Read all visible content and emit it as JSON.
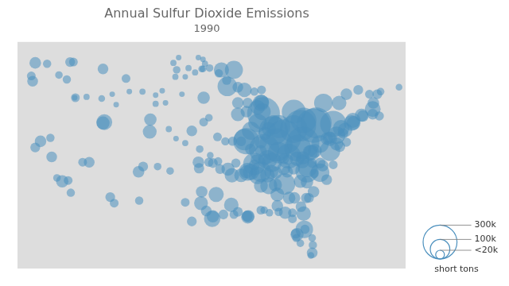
{
  "chart_data": {
    "type": "bubble",
    "title": "Annual Sulfur Dioxide Emissions",
    "subtitle": "1990",
    "color": "#4a8fbd",
    "xlim": [
      -125,
      -66
    ],
    "ylim": [
      24,
      50
    ],
    "grid": false,
    "tick_labels": false,
    "legend": "lower right",
    "size_legend": {
      "values": [
        300000,
        100000,
        20000
      ],
      "labels": [
        "300k",
        "100k",
        "<20k"
      ],
      "title": "short tons"
    },
    "points": [
      {
        "x": -87.6,
        "y": 41.8,
        "size": 280000
      },
      {
        "x": -84.5,
        "y": 39.1,
        "size": 320000
      },
      {
        "x": -82.0,
        "y": 40.4,
        "size": 260000
      },
      {
        "x": -80.0,
        "y": 40.4,
        "size": 310000
      },
      {
        "x": -77.0,
        "y": 40.6,
        "size": 180000
      },
      {
        "x": -86.1,
        "y": 39.8,
        "size": 220000
      },
      {
        "x": -83.0,
        "y": 42.0,
        "size": 150000
      },
      {
        "x": -85.7,
        "y": 38.2,
        "size": 290000
      },
      {
        "x": -87.5,
        "y": 37.7,
        "size": 240000
      },
      {
        "x": -90.2,
        "y": 38.6,
        "size": 180000
      },
      {
        "x": -89.0,
        "y": 36.0,
        "size": 130000
      },
      {
        "x": -88.0,
        "y": 35.1,
        "size": 110000
      },
      {
        "x": -84.4,
        "y": 33.7,
        "size": 120000
      },
      {
        "x": -81.0,
        "y": 35.2,
        "size": 140000
      },
      {
        "x": -80.9,
        "y": 35.6,
        "size": 100000
      },
      {
        "x": -79.0,
        "y": 35.0,
        "size": 90000
      },
      {
        "x": -77.5,
        "y": 37.5,
        "size": 110000
      },
      {
        "x": -76.5,
        "y": 39.3,
        "size": 80000
      },
      {
        "x": -75.8,
        "y": 40.1,
        "size": 70000
      },
      {
        "x": -74.0,
        "y": 41.0,
        "size": 60000
      },
      {
        "x": -73.9,
        "y": 40.7,
        "size": 50000
      },
      {
        "x": -71.0,
        "y": 42.3,
        "size": 65000
      },
      {
        "x": -72.7,
        "y": 41.6,
        "size": 45000
      },
      {
        "x": -70.9,
        "y": 43.0,
        "size": 35000
      },
      {
        "x": -70.3,
        "y": 44.0,
        "size": 25000
      },
      {
        "x": -93.1,
        "y": 44.9,
        "size": 100000
      },
      {
        "x": -94.0,
        "y": 46.8,
        "size": 60000
      },
      {
        "x": -92.1,
        "y": 46.8,
        "size": 85000
      },
      {
        "x": -90.5,
        "y": 44.5,
        "size": 55000
      },
      {
        "x": -88.0,
        "y": 43.0,
        "size": 70000
      },
      {
        "x": -87.9,
        "y": 43.1,
        "size": 55000
      },
      {
        "x": -96.7,
        "y": 43.6,
        "size": 40000
      },
      {
        "x": -98.5,
        "y": 39.8,
        "size": 30000
      },
      {
        "x": -97.5,
        "y": 36.2,
        "size": 35000
      },
      {
        "x": -95.4,
        "y": 29.7,
        "size": 70000
      },
      {
        "x": -97.1,
        "y": 31.5,
        "size": 50000
      },
      {
        "x": -94.8,
        "y": 32.5,
        "size": 60000
      },
      {
        "x": -92.5,
        "y": 31.3,
        "size": 55000
      },
      {
        "x": -90.0,
        "y": 29.9,
        "size": 45000
      },
      {
        "x": -89.9,
        "y": 30.0,
        "size": 40000
      },
      {
        "x": -86.8,
        "y": 33.5,
        "size": 75000
      },
      {
        "x": -85.5,
        "y": 32.5,
        "size": 50000
      },
      {
        "x": -81.4,
        "y": 28.5,
        "size": 80000
      },
      {
        "x": -80.2,
        "y": 25.8,
        "size": 30000
      },
      {
        "x": -81.5,
        "y": 30.3,
        "size": 55000
      },
      {
        "x": -82.5,
        "y": 27.9,
        "size": 45000
      },
      {
        "x": -84.3,
        "y": 30.4,
        "size": 40000
      },
      {
        "x": -78.6,
        "y": 35.8,
        "size": 35000
      },
      {
        "x": -78.0,
        "y": 34.2,
        "size": 30000
      },
      {
        "x": -80.0,
        "y": 32.8,
        "size": 35000
      },
      {
        "x": -81.0,
        "y": 33.9,
        "size": 40000
      },
      {
        "x": -82.0,
        "y": 34.0,
        "size": 45000
      },
      {
        "x": -104.9,
        "y": 39.7,
        "size": 50000
      },
      {
        "x": -104.8,
        "y": 41.1,
        "size": 40000
      },
      {
        "x": -106.6,
        "y": 35.1,
        "size": 35000
      },
      {
        "x": -105.9,
        "y": 35.7,
        "size": 25000
      },
      {
        "x": -111.8,
        "y": 40.8,
        "size": 65000
      },
      {
        "x": -112.0,
        "y": 40.7,
        "size": 45000
      },
      {
        "x": -114.1,
        "y": 36.2,
        "size": 30000
      },
      {
        "x": -115.1,
        "y": 36.2,
        "size": 20000
      },
      {
        "x": -118.2,
        "y": 34.0,
        "size": 40000
      },
      {
        "x": -119.8,
        "y": 36.8,
        "size": 30000
      },
      {
        "x": -121.5,
        "y": 38.6,
        "size": 35000
      },
      {
        "x": -122.3,
        "y": 37.9,
        "size": 25000
      },
      {
        "x": -122.7,
        "y": 45.5,
        "size": 30000
      },
      {
        "x": -122.3,
        "y": 47.6,
        "size": 35000
      },
      {
        "x": -117.0,
        "y": 47.7,
        "size": 25000
      },
      {
        "x": -116.2,
        "y": 43.6,
        "size": 20000
      },
      {
        "x": -112.0,
        "y": 46.9,
        "size": 30000
      },
      {
        "x": -108.5,
        "y": 45.8,
        "size": 20000
      },
      {
        "x": -100.8,
        "y": 46.8,
        "size": 15000
      },
      {
        "x": -96.7,
        "y": 40.8,
        "size": 20000
      },
      {
        "x": -95.9,
        "y": 41.3,
        "size": 15000
      },
      {
        "x": -91.5,
        "y": 41.7,
        "size": 50000
      },
      {
        "x": -90.2,
        "y": 42.0,
        "size": 35000
      },
      {
        "x": -83.0,
        "y": 40.0,
        "size": 200000
      },
      {
        "x": -81.5,
        "y": 41.0,
        "size": 170000
      },
      {
        "x": -78.5,
        "y": 43.0,
        "size": 90000
      },
      {
        "x": -76.1,
        "y": 43.0,
        "size": 55000
      },
      {
        "x": -75.0,
        "y": 44.0,
        "size": 35000
      },
      {
        "x": -73.2,
        "y": 44.5,
        "size": 25000
      },
      {
        "x": -71.5,
        "y": 44.0,
        "size": 20000
      },
      {
        "x": -69.8,
        "y": 44.3,
        "size": 15000
      },
      {
        "x": -67.0,
        "y": 44.8,
        "size": 12000
      },
      {
        "x": -79.6,
        "y": 40.7,
        "size": 250000
      },
      {
        "x": -81.6,
        "y": 38.4,
        "size": 280000
      },
      {
        "x": -82.4,
        "y": 37.8,
        "size": 190000
      },
      {
        "x": -83.8,
        "y": 36.9,
        "size": 160000
      },
      {
        "x": -85.3,
        "y": 40.3,
        "size": 140000
      },
      {
        "x": -85.3,
        "y": 37.3,
        "size": 120000
      },
      {
        "x": -86.3,
        "y": 36.2,
        "size": 100000
      },
      {
        "x": -87.0,
        "y": 36.5,
        "size": 95000
      },
      {
        "x": -88.5,
        "y": 34.7,
        "size": 80000
      },
      {
        "x": -89.5,
        "y": 35.1,
        "size": 70000
      },
      {
        "x": -90.0,
        "y": 35.1,
        "size": 85000
      },
      {
        "x": -91.0,
        "y": 34.7,
        "size": 50000
      },
      {
        "x": -92.4,
        "y": 34.7,
        "size": 55000
      },
      {
        "x": -93.0,
        "y": 35.4,
        "size": 45000
      },
      {
        "x": -90.5,
        "y": 38.8,
        "size": 120000
      },
      {
        "x": -89.5,
        "y": 39.8,
        "size": 85000
      },
      {
        "x": -88.5,
        "y": 40.7,
        "size": 90000
      },
      {
        "x": -87.8,
        "y": 42.0,
        "size": 75000
      },
      {
        "x": -88.5,
        "y": 42.5,
        "size": 55000
      },
      {
        "x": -86.1,
        "y": 40.5,
        "size": 95000
      },
      {
        "x": -84.5,
        "y": 35.5,
        "size": 45000
      },
      {
        "x": -83.0,
        "y": 35.5,
        "size": 40000
      },
      {
        "x": -81.7,
        "y": 36.3,
        "size": 50000
      },
      {
        "x": -80.3,
        "y": 37.3,
        "size": 65000
      },
      {
        "x": -79.0,
        "y": 38.3,
        "size": 80000
      },
      {
        "x": -77.5,
        "y": 38.9,
        "size": 55000
      },
      {
        "x": -76.5,
        "y": 38.3,
        "size": 45000
      },
      {
        "x": -75.2,
        "y": 39.9,
        "size": 55000
      },
      {
        "x": -74.2,
        "y": 40.7,
        "size": 65000
      },
      {
        "x": -72.5,
        "y": 41.5,
        "size": 35000
      },
      {
        "x": -71.0,
        "y": 41.7,
        "size": 30000
      },
      {
        "x": -70.0,
        "y": 41.5,
        "size": 22000
      },
      {
        "x": -122.9,
        "y": 46.1,
        "size": 20000
      },
      {
        "x": -120.5,
        "y": 47.5,
        "size": 18000
      },
      {
        "x": -118.7,
        "y": 46.2,
        "size": 15000
      },
      {
        "x": -117.5,
        "y": 45.7,
        "size": 18000
      },
      {
        "x": -116.5,
        "y": 47.7,
        "size": 20000
      },
      {
        "x": -120.0,
        "y": 39.0,
        "size": 18000
      },
      {
        "x": -119.0,
        "y": 34.4,
        "size": 15000
      },
      {
        "x": -117.3,
        "y": 34.1,
        "size": 20000
      },
      {
        "x": -116.9,
        "y": 32.7,
        "size": 18000
      },
      {
        "x": -110.9,
        "y": 32.2,
        "size": 25000
      },
      {
        "x": -110.3,
        "y": 31.5,
        "size": 20000
      },
      {
        "x": -106.5,
        "y": 31.8,
        "size": 18000
      },
      {
        "x": -103.7,
        "y": 35.7,
        "size": 15000
      },
      {
        "x": -101.8,
        "y": 35.2,
        "size": 15000
      },
      {
        "x": -99.5,
        "y": 31.6,
        "size": 20000
      },
      {
        "x": -98.5,
        "y": 29.4,
        "size": 25000
      },
      {
        "x": -96.3,
        "y": 30.6,
        "size": 30000
      },
      {
        "x": -95.3,
        "y": 30.0,
        "size": 40000
      },
      {
        "x": -93.7,
        "y": 30.2,
        "size": 25000
      },
      {
        "x": -92.1,
        "y": 30.2,
        "size": 20000
      },
      {
        "x": -91.5,
        "y": 30.5,
        "size": 25000
      },
      {
        "x": -90.1,
        "y": 30.0,
        "size": 30000
      },
      {
        "x": -88.0,
        "y": 30.7,
        "size": 20000
      },
      {
        "x": -87.5,
        "y": 30.7,
        "size": 15000
      },
      {
        "x": -86.7,
        "y": 30.4,
        "size": 15000
      },
      {
        "x": -85.3,
        "y": 30.5,
        "size": 18000
      },
      {
        "x": -83.2,
        "y": 29.7,
        "size": 20000
      },
      {
        "x": -82.7,
        "y": 28.0,
        "size": 25000
      },
      {
        "x": -81.3,
        "y": 28.5,
        "size": 22000
      },
      {
        "x": -80.1,
        "y": 26.7,
        "size": 18000
      },
      {
        "x": -80.2,
        "y": 27.5,
        "size": 15000
      },
      {
        "x": -80.4,
        "y": 25.5,
        "size": 12000
      },
      {
        "x": -82.0,
        "y": 26.9,
        "size": 15000
      },
      {
        "x": -82.6,
        "y": 27.5,
        "size": 18000
      },
      {
        "x": -83.2,
        "y": 30.4,
        "size": 20000
      },
      {
        "x": -87.0,
        "y": 34.7,
        "size": 55000
      },
      {
        "x": -88.0,
        "y": 33.5,
        "size": 50000
      },
      {
        "x": -85.8,
        "y": 33.6,
        "size": 45000
      },
      {
        "x": -85.5,
        "y": 31.2,
        "size": 35000
      },
      {
        "x": -83.7,
        "y": 32.1,
        "size": 40000
      },
      {
        "x": -82.9,
        "y": 32.1,
        "size": 35000
      },
      {
        "x": -81.9,
        "y": 31.1,
        "size": 30000
      },
      {
        "x": -81.1,
        "y": 32.1,
        "size": 28000
      },
      {
        "x": -80.7,
        "y": 32.1,
        "size": 25000
      },
      {
        "x": -79.9,
        "y": 34.9,
        "size": 22000
      },
      {
        "x": -79.0,
        "y": 36.1,
        "size": 30000
      },
      {
        "x": -80.2,
        "y": 36.1,
        "size": 25000
      },
      {
        "x": -77.0,
        "y": 35.9,
        "size": 20000
      },
      {
        "x": -95.3,
        "y": 36.1,
        "size": 25000
      },
      {
        "x": -97.0,
        "y": 32.8,
        "size": 35000
      },
      {
        "x": -97.4,
        "y": 35.5,
        "size": 28000
      },
      {
        "x": -95.9,
        "y": 36.2,
        "size": 22000
      },
      {
        "x": -94.5,
        "y": 36.3,
        "size": 18000
      },
      {
        "x": -94.2,
        "y": 35.4,
        "size": 25000
      },
      {
        "x": -91.8,
        "y": 36.1,
        "size": 22000
      },
      {
        "x": -90.2,
        "y": 35.1,
        "size": 45000
      },
      {
        "x": -89.0,
        "y": 35.9,
        "size": 30000
      },
      {
        "x": -88.8,
        "y": 36.5,
        "size": 25000
      },
      {
        "x": -87.4,
        "y": 36.5,
        "size": 35000
      },
      {
        "x": -86.4,
        "y": 35.1,
        "size": 50000
      },
      {
        "x": -85.7,
        "y": 35.0,
        "size": 40000
      },
      {
        "x": -84.0,
        "y": 35.1,
        "size": 35000
      },
      {
        "x": -84.5,
        "y": 36.6,
        "size": 30000
      },
      {
        "x": -83.9,
        "y": 36.5,
        "size": 28000
      },
      {
        "x": -82.5,
        "y": 36.6,
        "size": 55000
      },
      {
        "x": -81.6,
        "y": 36.7,
        "size": 45000
      },
      {
        "x": -80.5,
        "y": 37.3,
        "size": 60000
      },
      {
        "x": -79.8,
        "y": 37.5,
        "size": 50000
      },
      {
        "x": -78.0,
        "y": 38.9,
        "size": 40000
      },
      {
        "x": -77.5,
        "y": 39.0,
        "size": 35000
      },
      {
        "x": -76.0,
        "y": 38.0,
        "size": 30000
      },
      {
        "x": -75.5,
        "y": 39.5,
        "size": 28000
      },
      {
        "x": -75.0,
        "y": 38.5,
        "size": 22000
      },
      {
        "x": -91.5,
        "y": 43.0,
        "size": 35000
      },
      {
        "x": -90.0,
        "y": 43.0,
        "size": 28000
      },
      {
        "x": -87.9,
        "y": 44.5,
        "size": 20000
      },
      {
        "x": -89.0,
        "y": 44.3,
        "size": 18000
      },
      {
        "x": -91.5,
        "y": 44.8,
        "size": 30000
      },
      {
        "x": -93.2,
        "y": 45.6,
        "size": 22000
      },
      {
        "x": -94.4,
        "y": 46.4,
        "size": 18000
      },
      {
        "x": -95.8,
        "y": 47.0,
        "size": 15000
      },
      {
        "x": -96.8,
        "y": 46.9,
        "size": 12000
      },
      {
        "x": -99.0,
        "y": 47.0,
        "size": 10000
      },
      {
        "x": -101.3,
        "y": 47.6,
        "size": 10000
      },
      {
        "x": -100.5,
        "y": 48.2,
        "size": 8000
      },
      {
        "x": -97.5,
        "y": 48.2,
        "size": 8000
      },
      {
        "x": -96.8,
        "y": 48.0,
        "size": 8000
      },
      {
        "x": -96.5,
        "y": 47.5,
        "size": 10000
      },
      {
        "x": -97.0,
        "y": 46.9,
        "size": 12000
      },
      {
        "x": -98.0,
        "y": 46.5,
        "size": 10000
      },
      {
        "x": -99.5,
        "y": 46.0,
        "size": 8000
      },
      {
        "x": -101.0,
        "y": 46.0,
        "size": 10000
      },
      {
        "x": -103.0,
        "y": 44.4,
        "size": 8000
      },
      {
        "x": -104.0,
        "y": 43.9,
        "size": 8000
      },
      {
        "x": -104.0,
        "y": 42.9,
        "size": 10000
      },
      {
        "x": -106.0,
        "y": 44.3,
        "size": 10000
      },
      {
        "x": -108.0,
        "y": 44.3,
        "size": 8000
      },
      {
        "x": -110.6,
        "y": 44.0,
        "size": 8000
      },
      {
        "x": -112.2,
        "y": 43.5,
        "size": 12000
      },
      {
        "x": -114.5,
        "y": 43.7,
        "size": 10000
      },
      {
        "x": -116.3,
        "y": 43.6,
        "size": 8000
      },
      {
        "x": -102.0,
        "y": 40.0,
        "size": 10000
      },
      {
        "x": -100.9,
        "y": 38.9,
        "size": 8000
      },
      {
        "x": -99.5,
        "y": 38.4,
        "size": 10000
      },
      {
        "x": -97.3,
        "y": 37.7,
        "size": 15000
      },
      {
        "x": -95.7,
        "y": 37.0,
        "size": 12000
      },
      {
        "x": -94.6,
        "y": 39.1,
        "size": 20000
      },
      {
        "x": -93.4,
        "y": 38.6,
        "size": 18000
      },
      {
        "x": -92.3,
        "y": 38.6,
        "size": 22000
      },
      {
        "x": -91.0,
        "y": 38.6,
        "size": 25000
      },
      {
        "x": -89.6,
        "y": 37.7,
        "size": 30000
      },
      {
        "x": -88.0,
        "y": 37.5,
        "size": 35000
      },
      {
        "x": -88.0,
        "y": 38.5,
        "size": 40000
      },
      {
        "x": -87.4,
        "y": 39.5,
        "size": 45000
      },
      {
        "x": -86.8,
        "y": 40.0,
        "size": 50000
      },
      {
        "x": -100.0,
        "y": 44.0,
        "size": 8000
      },
      {
        "x": -102.5,
        "y": 43.0,
        "size": 8000
      },
      {
        "x": -110.0,
        "y": 42.8,
        "size": 8000
      }
    ]
  }
}
